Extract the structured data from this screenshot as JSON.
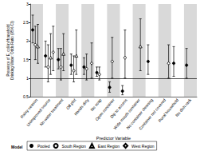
{
  "chart_data": {
    "type": "errorbar",
    "x_label": "Predictor Variable",
    "y_label": "Presence of E. coli in Household Drinking Water: Odds Ratio (95% CI)",
    "legend_title": "Model",
    "legend": "bottom",
    "grid": false,
    "reference_line": 1,
    "categories": [
      "Rainy season",
      "Unimproved source",
      "No water treatment",
      "Off plot",
      "Hands dirty",
      "No soap",
      "Open container",
      "Dip to access",
      "Wide mouth container",
      "No container cleaning",
      "Container not covered",
      "Rural household",
      "No dish rack"
    ],
    "ylim": [
      0.5,
      3
    ],
    "yticks": [
      0.5,
      1,
      1.5,
      2,
      2.5,
      3
    ],
    "series": [
      {
        "name": "Pooled",
        "color": "#000000",
        "marker": "circle",
        "values": [
          2.3,
          1.6,
          1.5,
          1.35,
          1.3,
          1.15,
          0.75,
          0.65,
          null,
          1.45,
          null,
          1.4,
          1.35
        ],
        "lower": [
          1.95,
          1.3,
          1.25,
          1.1,
          1.1,
          1.05,
          0.62,
          0.55,
          null,
          1.1,
          null,
          1.05,
          1.0
        ],
        "upper": [
          2.7,
          2.0,
          1.8,
          1.65,
          1.55,
          1.3,
          0.9,
          0.8,
          null,
          1.9,
          null,
          1.85,
          1.8
        ]
      },
      {
        "name": "South Region",
        "color": "#000000",
        "marker": "emptyCircle",
        "values": [
          1.9,
          1.3,
          1.3,
          1.2,
          1.25,
          1.1,
          1.45,
          1.55,
          null,
          null,
          null,
          null,
          null
        ],
        "lower": [
          1.5,
          0.9,
          0.95,
          0.9,
          0.95,
          0.95,
          1.0,
          1.0,
          null,
          null,
          null,
          null,
          null
        ],
        "upper": [
          2.4,
          1.9,
          1.8,
          1.6,
          1.65,
          1.3,
          2.1,
          2.3,
          null,
          null,
          null,
          null,
          null
        ]
      },
      {
        "name": "East Region",
        "color": "#000000",
        "marker": "emptyTriangle",
        "values": [
          1.85,
          1.55,
          1.65,
          1.6,
          null,
          null,
          null,
          null,
          1.85,
          null,
          null,
          null,
          null
        ],
        "lower": [
          1.4,
          1.1,
          1.2,
          1.1,
          null,
          null,
          null,
          null,
          1.2,
          null,
          null,
          null,
          null
        ],
        "upper": [
          2.45,
          2.2,
          2.2,
          2.3,
          null,
          null,
          null,
          null,
          2.6,
          null,
          null,
          null,
          null
        ]
      },
      {
        "name": "West Region",
        "color": "#000000",
        "marker": "emptyDiamond",
        "values": [
          null,
          1.7,
          null,
          null,
          1.4,
          null,
          null,
          null,
          null,
          null,
          1.4,
          null,
          null
        ],
        "lower": [
          null,
          1.2,
          null,
          null,
          1.0,
          null,
          null,
          null,
          null,
          null,
          1.0,
          null,
          null
        ],
        "upper": [
          null,
          2.4,
          null,
          null,
          1.95,
          null,
          null,
          null,
          null,
          null,
          1.9,
          null,
          null
        ]
      }
    ]
  }
}
